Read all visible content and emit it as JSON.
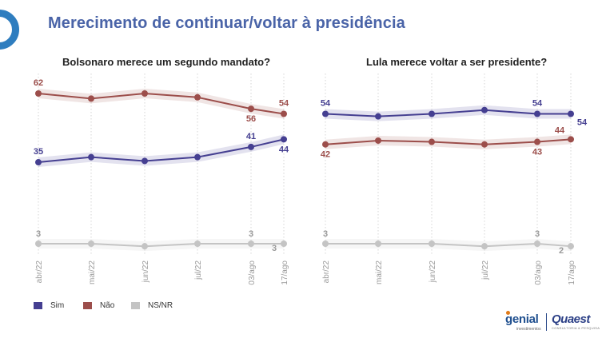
{
  "title": "Merecimento de continuar/voltar à presidência",
  "chart_data": [
    {
      "type": "line",
      "title": "Bolsonaro merece um segundo mandato?",
      "categories": [
        "abr/22",
        "mai/22",
        "jun/22",
        "jul/22",
        "03/ago",
        "17/ago"
      ],
      "series": [
        {
          "name": "Não",
          "color": "#9c4e4b",
          "values": [
            62,
            60,
            62,
            60.5,
            56,
            54
          ],
          "labels": [
            "62",
            "",
            "",
            "",
            "56",
            "54"
          ]
        },
        {
          "name": "Sim",
          "color": "#453f91",
          "values": [
            35,
            37,
            35.5,
            37,
            41,
            44
          ],
          "labels": [
            "35",
            "",
            "",
            "",
            "41",
            "44"
          ]
        },
        {
          "name": "NS/NR",
          "color": "#c4c4c4",
          "values": [
            3,
            3,
            2,
            3,
            3,
            3
          ],
          "labels": [
            "3",
            "",
            "",
            "",
            "3",
            "3"
          ]
        }
      ]
    },
    {
      "type": "line",
      "title": "Lula merece voltar a ser presidente?",
      "categories": [
        "abr/22",
        "mai/22",
        "jun/22",
        "jul/22",
        "03/ago",
        "17/ago"
      ],
      "series": [
        {
          "name": "Sim",
          "color": "#453f91",
          "values": [
            54,
            53,
            54,
            55.5,
            54,
            54
          ],
          "labels": [
            "54",
            "",
            "",
            "",
            "54",
            "54"
          ]
        },
        {
          "name": "Não",
          "color": "#9c4e4b",
          "values": [
            42,
            43.5,
            43,
            42,
            43,
            44
          ],
          "labels": [
            "42",
            "",
            "",
            "",
            "43",
            "44"
          ]
        },
        {
          "name": "NS/NR",
          "color": "#c4c4c4",
          "values": [
            3,
            3,
            3,
            2,
            3,
            2
          ],
          "labels": [
            "3",
            "",
            "",
            "",
            "3",
            "2"
          ]
        }
      ]
    }
  ],
  "legend": [
    {
      "label": "Sim",
      "color": "#453f91"
    },
    {
      "label": "Não",
      "color": "#9c4e4b"
    },
    {
      "label": "NS/NR",
      "color": "#c4c4c4"
    }
  ],
  "brand": {
    "genial": "genial",
    "genial_sub": "investimentos",
    "quaest": "Quaest",
    "quaest_sub": "CONSULTORIA & PESQUISA"
  }
}
